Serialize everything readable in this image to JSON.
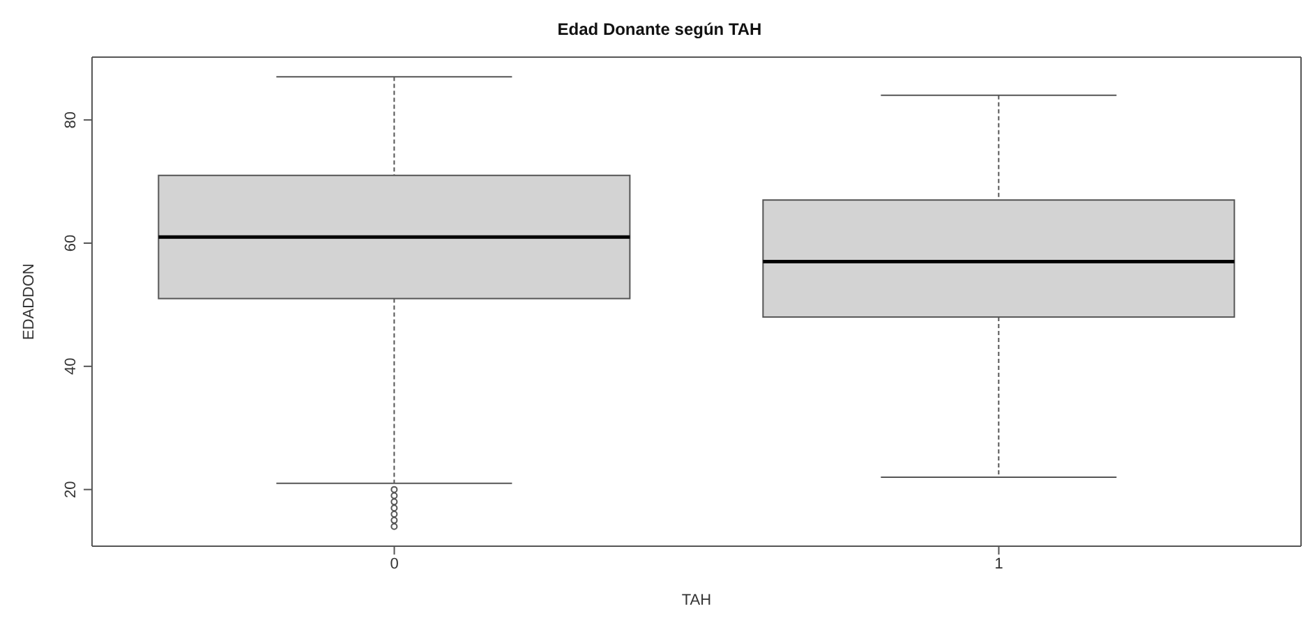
{
  "chart_data": {
    "type": "box",
    "title": "Edad Donante según TAH",
    "xlabel": "TAH",
    "ylabel": "EDADDON",
    "categories": [
      "0",
      "1"
    ],
    "boxes": [
      {
        "low": 21,
        "q1": 51,
        "median": 61,
        "q3": 71,
        "high": 87,
        "outliers": [
          20,
          19,
          18,
          17,
          16,
          15,
          14
        ]
      },
      {
        "low": 22,
        "q1": 48,
        "median": 57,
        "q3": 67,
        "high": 84
      }
    ],
    "color": "#d3d3d3",
    "ylim": [
      10.8,
      90.2
    ],
    "yticks": [
      20,
      40,
      60,
      80
    ]
  }
}
